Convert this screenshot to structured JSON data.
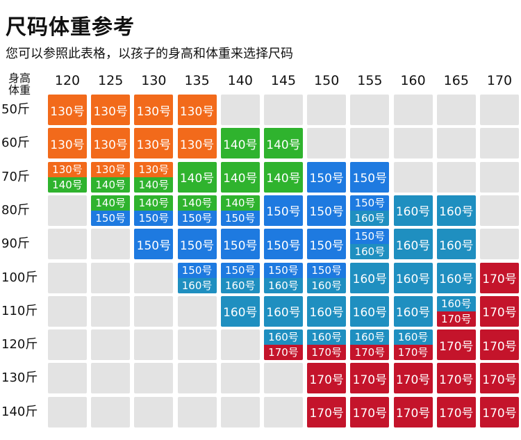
{
  "title": "尺码体重参考",
  "subtitle": "您可以参照此表格，以孩子的身高和体重来选择尺码",
  "corner": {
    "line1": "身高",
    "line2": "体重"
  },
  "colors": {
    "130号": "#f26a1b",
    "140号": "#2fb32e",
    "150号": "#1e7ae0",
    "160号": "#1f8fc0",
    "170号": "#c4142b",
    "empty": "#e3e3e3"
  },
  "chart_data": {
    "type": "table",
    "heights": [
      "120",
      "125",
      "130",
      "135",
      "140",
      "145",
      "150",
      "155",
      "160",
      "165",
      "170"
    ],
    "weights": [
      "50斤",
      "60斤",
      "70斤",
      "80斤",
      "90斤",
      "100斤",
      "110斤",
      "120斤",
      "130斤",
      "140斤"
    ],
    "cells": [
      [
        [
          "130号"
        ],
        [
          "130号"
        ],
        [
          "130号"
        ],
        [
          "130号"
        ],
        [],
        [],
        [],
        [],
        [],
        [],
        []
      ],
      [
        [
          "130号"
        ],
        [
          "130号"
        ],
        [
          "130号"
        ],
        [
          "130号"
        ],
        [
          "140号"
        ],
        [
          "140号"
        ],
        [],
        [],
        [],
        [],
        []
      ],
      [
        [
          "130号",
          "140号"
        ],
        [
          "130号",
          "140号"
        ],
        [
          "130号",
          "140号"
        ],
        [
          "140号"
        ],
        [
          "140号"
        ],
        [
          "140号"
        ],
        [
          "150号"
        ],
        [
          "150号"
        ],
        [],
        [],
        []
      ],
      [
        [],
        [
          "140号",
          "150号"
        ],
        [
          "140号",
          "150号"
        ],
        [
          "140号",
          "150号"
        ],
        [
          "140号",
          "150号"
        ],
        [
          "150号"
        ],
        [
          "150号"
        ],
        [
          "150号",
          "160号"
        ],
        [
          "160号"
        ],
        [
          "160号"
        ],
        []
      ],
      [
        [],
        [],
        [
          "150号"
        ],
        [
          "150号"
        ],
        [
          "150号"
        ],
        [
          "150号"
        ],
        [
          "150号"
        ],
        [
          "150号",
          "160号"
        ],
        [
          "160号"
        ],
        [
          "160号"
        ],
        []
      ],
      [
        [],
        [],
        [],
        [
          "150号",
          "160号"
        ],
        [
          "150号",
          "160号"
        ],
        [
          "150号",
          "160号"
        ],
        [
          "150号",
          "160号"
        ],
        [
          "160号"
        ],
        [
          "160号"
        ],
        [
          "160号"
        ],
        [
          "170号"
        ]
      ],
      [
        [],
        [],
        [],
        [],
        [
          "160号"
        ],
        [
          "160号"
        ],
        [
          "160号"
        ],
        [
          "160号"
        ],
        [
          "160号"
        ],
        [
          "160号",
          "170号"
        ],
        [
          "170号"
        ]
      ],
      [
        [],
        [],
        [],
        [],
        [],
        [
          "160号",
          "170号"
        ],
        [
          "160号",
          "170号"
        ],
        [
          "160号",
          "170号"
        ],
        [
          "160号",
          "170号"
        ],
        [
          "170号"
        ],
        [
          "170号"
        ]
      ],
      [
        [],
        [],
        [],
        [],
        [],
        [],
        [
          "170号"
        ],
        [
          "170号"
        ],
        [
          "170号"
        ],
        [
          "170号"
        ],
        [
          "170号"
        ]
      ],
      [
        [],
        [],
        [],
        [],
        [],
        [],
        [
          "170号"
        ],
        [
          "170号"
        ],
        [
          "170号"
        ],
        [
          "170号"
        ],
        [
          "170号"
        ]
      ]
    ]
  }
}
